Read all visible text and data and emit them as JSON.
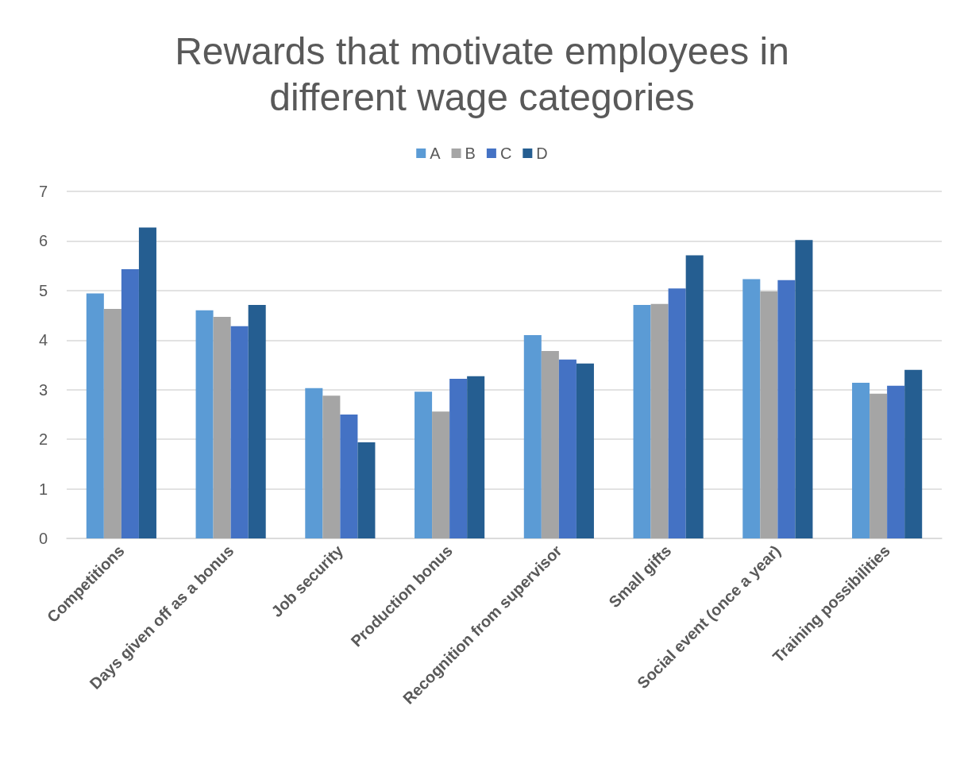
{
  "chart_data": {
    "type": "bar",
    "title": "Rewards that motivate employees in\ndifferent wage categories",
    "categories": [
      "Competitions",
      "Days given off as a bonus",
      "Job security",
      "Production bonus",
      "Recognition from supervisor",
      "Small gifts",
      "Social event (once a year)",
      "Training possibilities"
    ],
    "series": [
      {
        "name": "A",
        "color": "#5b9bd5",
        "values": [
          4.94,
          4.6,
          3.03,
          2.96,
          4.1,
          4.71,
          5.23,
          3.14
        ]
      },
      {
        "name": "B",
        "color": "#a5a5a5",
        "values": [
          4.63,
          4.47,
          2.88,
          2.56,
          3.78,
          4.73,
          4.98,
          2.92
        ]
      },
      {
        "name": "C",
        "color": "#4472c4",
        "values": [
          5.43,
          4.28,
          2.5,
          3.22,
          3.61,
          5.04,
          5.21,
          3.08
        ]
      },
      {
        "name": "D",
        "color": "#255e91",
        "values": [
          6.27,
          4.71,
          1.94,
          3.27,
          3.53,
          5.71,
          6.02,
          3.4
        ]
      }
    ],
    "ylim": [
      0,
      7
    ],
    "yticks": [
      0,
      1,
      2,
      3,
      4,
      5,
      6,
      7
    ],
    "grid": "y",
    "legend": "top"
  }
}
